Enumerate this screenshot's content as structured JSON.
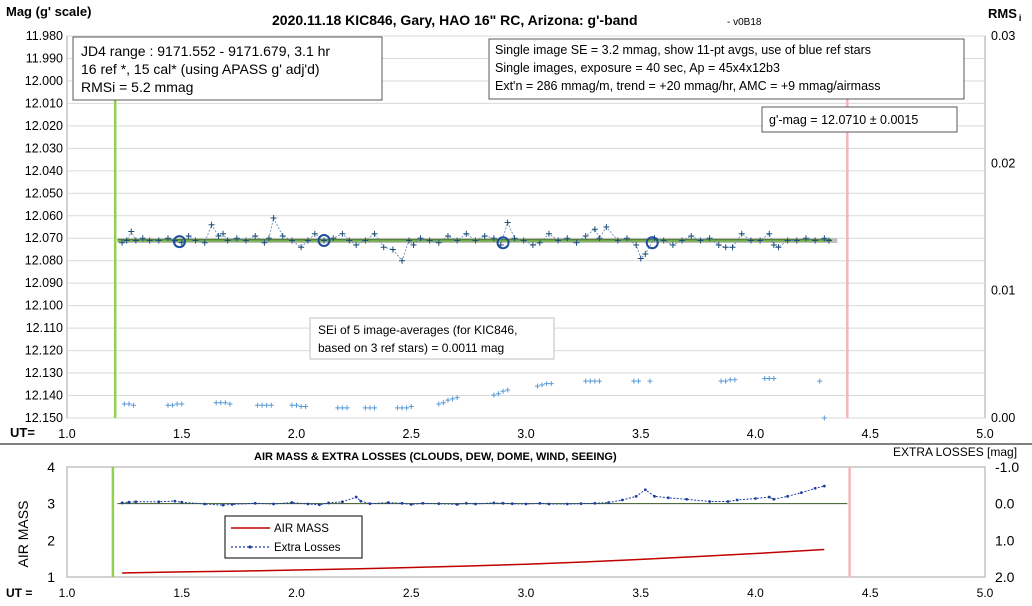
{
  "chart_data": [
    {
      "type": "scatter",
      "title": "2020.11.18 KIC846, Gary, HAO 16\" RC, Arizona: g'-band",
      "version": "- v0B18",
      "ylabel": "Mag (g' scale)",
      "y2label": "RMS",
      "y2label_sub": "i",
      "xlabel": "UT=",
      "xlim": [
        1.0,
        5.0
      ],
      "ylim": [
        11.98,
        12.15
      ],
      "y_reversed": true,
      "y2lim": [
        0.0,
        0.03
      ],
      "grid": true,
      "x_ticks": [
        "1.0",
        "1.5",
        "2.0",
        "2.5",
        "3.0",
        "3.5",
        "4.0",
        "4.5",
        "5.0"
      ],
      "y_ticks": [
        "11.980",
        "11.990",
        "12.000",
        "12.010",
        "12.020",
        "12.030",
        "12.040",
        "12.050",
        "12.060",
        "12.070",
        "12.080",
        "12.090",
        "12.100",
        "12.110",
        "12.120",
        "12.130",
        "12.140",
        "12.150"
      ],
      "y2_ticks": [
        "0.00",
        "0.01",
        "0.02",
        "0.03"
      ],
      "vlines": [
        {
          "x": 1.21,
          "color": "#92d050"
        },
        {
          "x": 4.4,
          "color": "#f4b6bd"
        }
      ],
      "fit_line": {
        "x": [
          1.22,
          4.33
        ],
        "y": 12.071,
        "color": "#548235"
      },
      "info_box_left": [
        "JD4 range : 9171.552 - 9171.679,  3.1  hr",
        "16 ref *, 15 cal* (using APASS g' adj'd)",
        "RMSi = 5.2 mmag"
      ],
      "info_box_right": [
        "Single image SE = 3.2 mmag, show  11-pt avgs, use of blue ref stars",
        "Single images, exposure = 40 sec, Ap = 45x4x12b3",
        "Ext'n = 286 mmag/m, trend =  +20 mmag/hr, AMC = +9 mmag/airmass"
      ],
      "gmag_box": "g'-mag = 12.0710 ± 0.0015",
      "sei_box": [
        "SEi of 5 image-averages (for KIC846,",
        "based on 3 ref stars) = 0.0011 mag"
      ],
      "series": [
        {
          "role": "single-image-mags",
          "color": "#1f4e79",
          "x": [
            1.24,
            1.26,
            1.28,
            1.3,
            1.33,
            1.36,
            1.4,
            1.44,
            1.47,
            1.5,
            1.53,
            1.56,
            1.6,
            1.63,
            1.66,
            1.68,
            1.7,
            1.74,
            1.78,
            1.82,
            1.86,
            1.88,
            1.9,
            1.94,
            1.98,
            2.02,
            2.05,
            2.08,
            2.12,
            2.16,
            2.2,
            2.23,
            2.26,
            2.3,
            2.34,
            2.38,
            2.42,
            2.46,
            2.49,
            2.51,
            2.54,
            2.58,
            2.62,
            2.66,
            2.7,
            2.74,
            2.78,
            2.82,
            2.86,
            2.89,
            2.92,
            2.95,
            2.99,
            3.03,
            3.06,
            3.1,
            3.14,
            3.18,
            3.22,
            3.26,
            3.3,
            3.32,
            3.35,
            3.4,
            3.44,
            3.48,
            3.5,
            3.52,
            3.56,
            3.6,
            3.64,
            3.68,
            3.72,
            3.76,
            3.8,
            3.84,
            3.87,
            3.9,
            3.94,
            3.98,
            4.02,
            4.06,
            4.08,
            4.1,
            4.14,
            4.18,
            4.22,
            4.26,
            4.3,
            4.32
          ],
          "y": [
            12.072,
            12.071,
            12.067,
            12.071,
            12.07,
            12.071,
            12.071,
            12.07,
            12.071,
            12.072,
            12.069,
            12.071,
            12.072,
            12.064,
            12.069,
            12.068,
            12.071,
            12.07,
            12.071,
            12.069,
            12.072,
            12.07,
            12.061,
            12.069,
            12.071,
            12.074,
            12.071,
            12.068,
            12.071,
            12.07,
            12.068,
            12.071,
            12.073,
            12.071,
            12.068,
            12.074,
            12.075,
            12.08,
            12.071,
            12.073,
            12.07,
            12.071,
            12.072,
            12.069,
            12.071,
            12.068,
            12.071,
            12.069,
            12.07,
            12.073,
            12.063,
            12.07,
            12.071,
            12.073,
            12.072,
            12.068,
            12.071,
            12.07,
            12.072,
            12.069,
            12.066,
            12.07,
            12.065,
            12.071,
            12.07,
            12.073,
            12.079,
            12.077,
            12.07,
            12.071,
            12.073,
            12.071,
            12.069,
            12.071,
            12.07,
            12.073,
            12.074,
            12.074,
            12.068,
            12.071,
            12.071,
            12.068,
            12.073,
            12.074,
            12.071,
            12.071,
            12.07,
            12.071,
            12.07,
            12.071
          ]
        },
        {
          "role": "11-pt-averages",
          "color": "#1f4e9a",
          "x": [
            1.49,
            2.12,
            2.9,
            3.55
          ],
          "y": [
            12.0715,
            12.071,
            12.072,
            12.072
          ]
        },
        {
          "role": "rms",
          "color": "#5b9bd5",
          "x": [
            1.25,
            1.27,
            1.29,
            1.44,
            1.46,
            1.48,
            1.5,
            1.65,
            1.67,
            1.69,
            1.71,
            1.83,
            1.85,
            1.87,
            1.89,
            1.98,
            2.0,
            2.02,
            2.04,
            2.18,
            2.2,
            2.22,
            2.3,
            2.32,
            2.34,
            2.44,
            2.46,
            2.48,
            2.5,
            2.62,
            2.64,
            2.66,
            2.68,
            2.7,
            2.86,
            2.88,
            2.9,
            2.92,
            3.05,
            3.07,
            3.09,
            3.11,
            3.26,
            3.28,
            3.3,
            3.32,
            3.47,
            3.49,
            3.54,
            3.85,
            3.87,
            3.89,
            3.91,
            4.04,
            4.06,
            4.08,
            4.28,
            4.3
          ],
          "y": [
            0.0011,
            0.0011,
            0.001,
            0.001,
            0.001,
            0.0011,
            0.0011,
            0.0012,
            0.0012,
            0.0012,
            0.0011,
            0.001,
            0.001,
            0.001,
            0.001,
            0.001,
            0.001,
            0.0009,
            0.0009,
            0.0008,
            0.0008,
            0.0008,
            0.0008,
            0.0008,
            0.0008,
            0.0008,
            0.0008,
            0.0008,
            0.0009,
            0.0011,
            0.0012,
            0.0014,
            0.0015,
            0.0016,
            0.0018,
            0.0019,
            0.0021,
            0.0022,
            0.0025,
            0.0026,
            0.0027,
            0.0027,
            0.0029,
            0.0029,
            0.0029,
            0.0029,
            0.0029,
            0.0029,
            0.0029,
            0.0029,
            0.0029,
            0.003,
            0.003,
            0.0031,
            0.0031,
            0.0031,
            0.0029,
            0.0
          ]
        }
      ]
    },
    {
      "type": "line",
      "title": "AIR MASS & EXTRA LOSSES (CLOUDS, DEW, DOME, WIND, SEEING)",
      "ylabel": "AIR MASS",
      "y2label": "EXTRA LOSSES [mag]",
      "xlabel": "UT =",
      "xlim": [
        1.0,
        5.0
      ],
      "ylim": [
        1,
        4
      ],
      "y2lim": [
        2.0,
        -1.0
      ],
      "x_ticks": [
        "1.0",
        "1.5",
        "2.0",
        "2.5",
        "3.0",
        "3.5",
        "4.0",
        "4.5",
        "5.0"
      ],
      "y_ticks": [
        "1",
        "2",
        "3",
        "4"
      ],
      "y2_ticks": [
        "-1.0",
        "0.0",
        "1.0",
        "2.0"
      ],
      "vlines": [
        {
          "x": 1.2,
          "color": "#92d050"
        },
        {
          "x": 4.41,
          "color": "#f4b6bd"
        }
      ],
      "zero_line": {
        "x": [
          1.22,
          4.4
        ],
        "y": 3.0,
        "color": "#375623"
      },
      "legend": {
        "placement": "center-left",
        "items": [
          "AIR MASS",
          "Extra Losses"
        ]
      },
      "series": [
        {
          "name": "AIR MASS",
          "color": "#c00000",
          "x": [
            1.24,
            1.5,
            1.75,
            2.0,
            2.25,
            2.5,
            2.75,
            3.0,
            3.25,
            3.5,
            3.75,
            4.0,
            4.3
          ],
          "y": [
            1.11,
            1.14,
            1.16,
            1.19,
            1.22,
            1.26,
            1.3,
            1.35,
            1.41,
            1.48,
            1.56,
            1.64,
            1.75
          ]
        },
        {
          "name": "Extra Losses",
          "color": "#1f3fa0",
          "x": [
            1.24,
            1.27,
            1.3,
            1.4,
            1.47,
            1.5,
            1.6,
            1.68,
            1.72,
            1.82,
            1.9,
            1.98,
            2.05,
            2.1,
            2.14,
            2.2,
            2.26,
            2.28,
            2.32,
            2.4,
            2.46,
            2.5,
            2.55,
            2.62,
            2.7,
            2.74,
            2.78,
            2.86,
            2.9,
            2.94,
            3.0,
            3.06,
            3.1,
            3.18,
            3.24,
            3.3,
            3.36,
            3.42,
            3.48,
            3.52,
            3.56,
            3.62,
            3.7,
            3.8,
            3.88,
            3.92,
            4.0,
            4.06,
            4.08,
            4.14,
            4.2,
            4.26,
            4.3
          ],
          "y": [
            -0.02,
            -0.04,
            -0.05,
            -0.05,
            -0.07,
            -0.04,
            0.01,
            0.04,
            0.02,
            -0.01,
            0.01,
            -0.03,
            0.01,
            0.03,
            -0.02,
            -0.05,
            -0.18,
            -0.07,
            0.0,
            -0.03,
            -0.01,
            0.02,
            -0.01,
            0.0,
            0.02,
            -0.01,
            0.01,
            -0.02,
            -0.01,
            0.0,
            0.01,
            -0.01,
            0.01,
            0.01,
            0.0,
            -0.01,
            -0.03,
            -0.1,
            -0.2,
            -0.38,
            -0.2,
            -0.16,
            -0.12,
            -0.06,
            -0.06,
            -0.1,
            -0.14,
            -0.18,
            -0.12,
            -0.2,
            -0.3,
            -0.42,
            -0.48
          ]
        }
      ]
    }
  ]
}
